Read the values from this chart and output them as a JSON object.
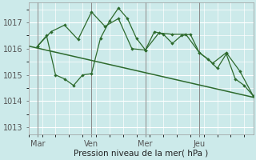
{
  "xlabel": "Pression niveau de la mer( hPa )",
  "bg_color": "#cceaea",
  "grid_color": "#ffffff",
  "line_color": "#2d6a2d",
  "xlim": [
    0,
    100
  ],
  "ylim": [
    1012.75,
    1017.75
  ],
  "yticks": [
    1013,
    1014,
    1015,
    1016,
    1017
  ],
  "xtick_positions": [
    4,
    28,
    52,
    76
  ],
  "xtick_labels": [
    "Mar",
    "Ven",
    "Mer",
    "Jeu"
  ],
  "vline_positions": [
    4,
    28,
    52,
    76
  ],
  "trend_x": [
    0,
    100
  ],
  "trend_y": [
    1016.1,
    1014.15
  ],
  "line1_x": [
    4,
    8,
    12,
    16,
    20,
    24,
    28,
    32,
    36,
    40,
    44,
    48,
    52,
    56,
    60,
    64,
    68,
    72,
    76,
    80,
    84,
    88,
    92,
    96,
    100
  ],
  "line1_y": [
    1016.1,
    1016.5,
    1015.0,
    1014.85,
    1014.6,
    1015.0,
    1015.05,
    1016.4,
    1017.05,
    1017.55,
    1017.15,
    1016.4,
    1015.95,
    1016.65,
    1016.55,
    1016.2,
    1016.5,
    1016.55,
    1015.85,
    1015.6,
    1015.25,
    1015.8,
    1014.85,
    1014.6,
    1014.2
  ],
  "line2_x": [
    4,
    10,
    16,
    22,
    28,
    34,
    40,
    46,
    52,
    58,
    64,
    70,
    76,
    82,
    88,
    94,
    100
  ],
  "line2_y": [
    1016.1,
    1016.65,
    1016.9,
    1016.35,
    1017.4,
    1016.85,
    1017.15,
    1016.0,
    1015.95,
    1016.6,
    1016.55,
    1016.55,
    1015.85,
    1015.45,
    1015.85,
    1015.15,
    1014.2
  ]
}
